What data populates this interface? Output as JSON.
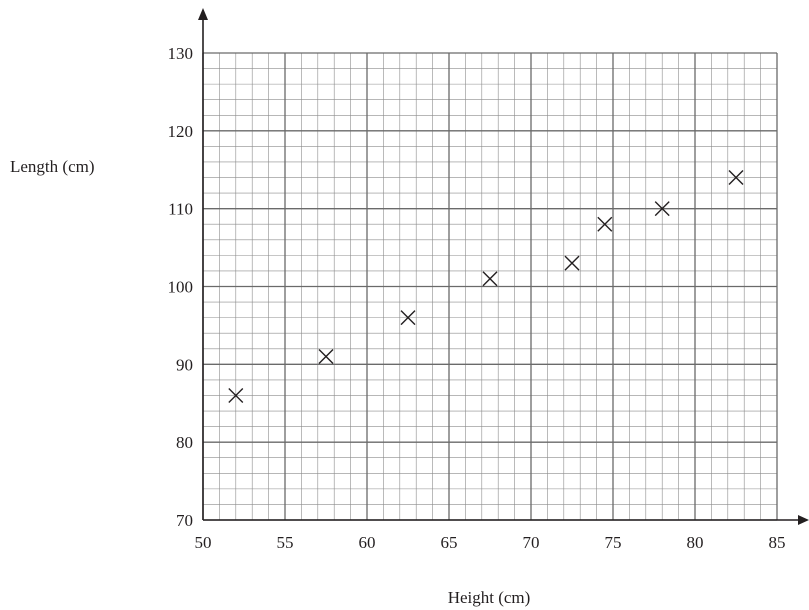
{
  "chart_data": {
    "type": "scatter",
    "xlabel": "Height (cm)",
    "ylabel": "Length (cm)",
    "xlim": [
      50,
      85
    ],
    "ylim": [
      70,
      130
    ],
    "x_ticks": [
      50,
      55,
      60,
      65,
      70,
      75,
      80,
      85
    ],
    "y_ticks": [
      70,
      80,
      90,
      100,
      110,
      120,
      130
    ],
    "x_tick_labels": [
      "50",
      "55",
      "60",
      "65",
      "70",
      "75",
      "80",
      "85"
    ],
    "y_tick_labels": [
      "70",
      "80",
      "90",
      "100",
      "110",
      "120",
      "130"
    ],
    "grid": true,
    "marker": "cross",
    "points": [
      {
        "x": 52,
        "y": 86
      },
      {
        "x": 57.5,
        "y": 91
      },
      {
        "x": 62.5,
        "y": 96
      },
      {
        "x": 67.5,
        "y": 101
      },
      {
        "x": 72.5,
        "y": 103
      },
      {
        "x": 74.5,
        "y": 108
      },
      {
        "x": 78,
        "y": 110
      },
      {
        "x": 82.5,
        "y": 114
      }
    ],
    "colors": {
      "ink": "#231f20",
      "minor_grid": "#8c8c8c",
      "major_grid": "#6a6a6a"
    }
  }
}
